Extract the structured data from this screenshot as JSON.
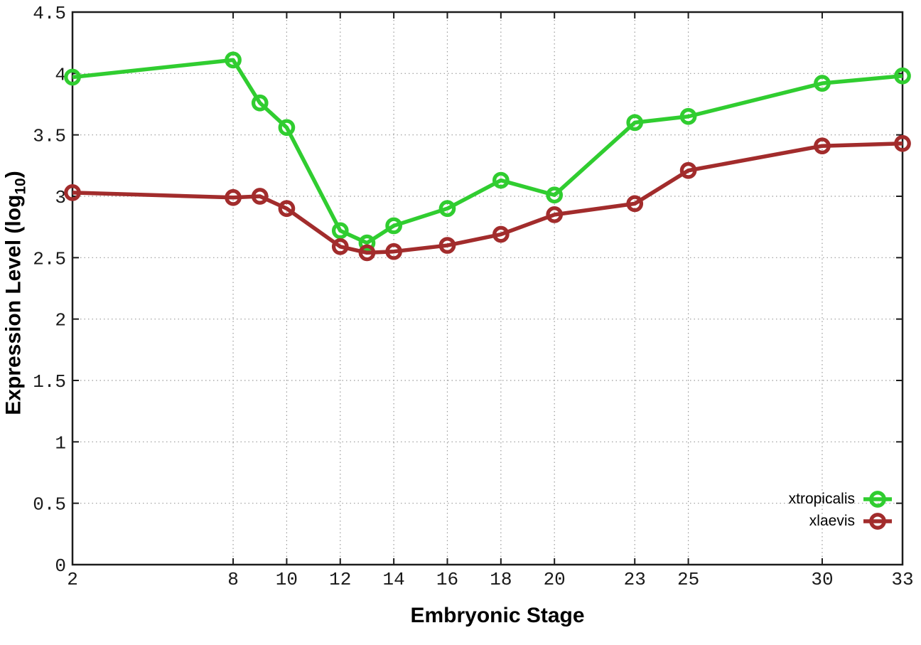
{
  "chart_data": {
    "type": "line",
    "title": "",
    "xlabel": "Embryonic Stage",
    "ylabel": "Expression Level (log10)",
    "ylabel_parts": {
      "main": "Expression Level (log",
      "sub": "10",
      "close": ")"
    },
    "xlim": [
      2,
      33
    ],
    "ylim": [
      0,
      4.5
    ],
    "grid": true,
    "legend_position": "bottom-right-inside",
    "x": [
      2,
      8,
      9,
      10,
      12,
      13,
      14,
      16,
      18,
      20,
      23,
      25,
      30,
      33
    ],
    "xticks": [
      {
        "v": 2,
        "label": "2"
      },
      {
        "v": 8,
        "label": "8"
      },
      {
        "v": 10,
        "label": "10"
      },
      {
        "v": 12,
        "label": "12"
      },
      {
        "v": 14,
        "label": "14"
      },
      {
        "v": 16,
        "label": "16"
      },
      {
        "v": 18,
        "label": "18"
      },
      {
        "v": 20,
        "label": "20"
      },
      {
        "v": 23,
        "label": "23"
      },
      {
        "v": 25,
        "label": "25"
      },
      {
        "v": 30,
        "label": "30"
      },
      {
        "v": 33,
        "label": "33"
      }
    ],
    "yticks": [
      {
        "v": 0,
        "label": "0"
      },
      {
        "v": 0.5,
        "label": "0.5"
      },
      {
        "v": 1,
        "label": "1"
      },
      {
        "v": 1.5,
        "label": "1.5"
      },
      {
        "v": 2,
        "label": "2"
      },
      {
        "v": 2.5,
        "label": "2.5"
      },
      {
        "v": 3,
        "label": "3"
      },
      {
        "v": 3.5,
        "label": "3.5"
      },
      {
        "v": 4,
        "label": "4"
      },
      {
        "v": 4.5,
        "label": "4.5"
      }
    ],
    "series": [
      {
        "name": "xtropicalis",
        "color": "#30cd30",
        "values": [
          3.97,
          4.11,
          3.76,
          3.56,
          2.72,
          2.62,
          2.76,
          2.9,
          3.13,
          3.01,
          3.6,
          3.65,
          3.92,
          3.98
        ]
      },
      {
        "name": "xlaevis",
        "color": "#a22c2c",
        "values": [
          3.03,
          2.99,
          3.0,
          2.9,
          2.59,
          2.54,
          2.55,
          2.6,
          2.69,
          2.85,
          2.94,
          3.21,
          3.41,
          3.43
        ]
      }
    ]
  },
  "style_colors": {
    "grid": "#9a9a9a",
    "axis": "#1c1c1c",
    "tick_text": "#1a1a1a"
  }
}
